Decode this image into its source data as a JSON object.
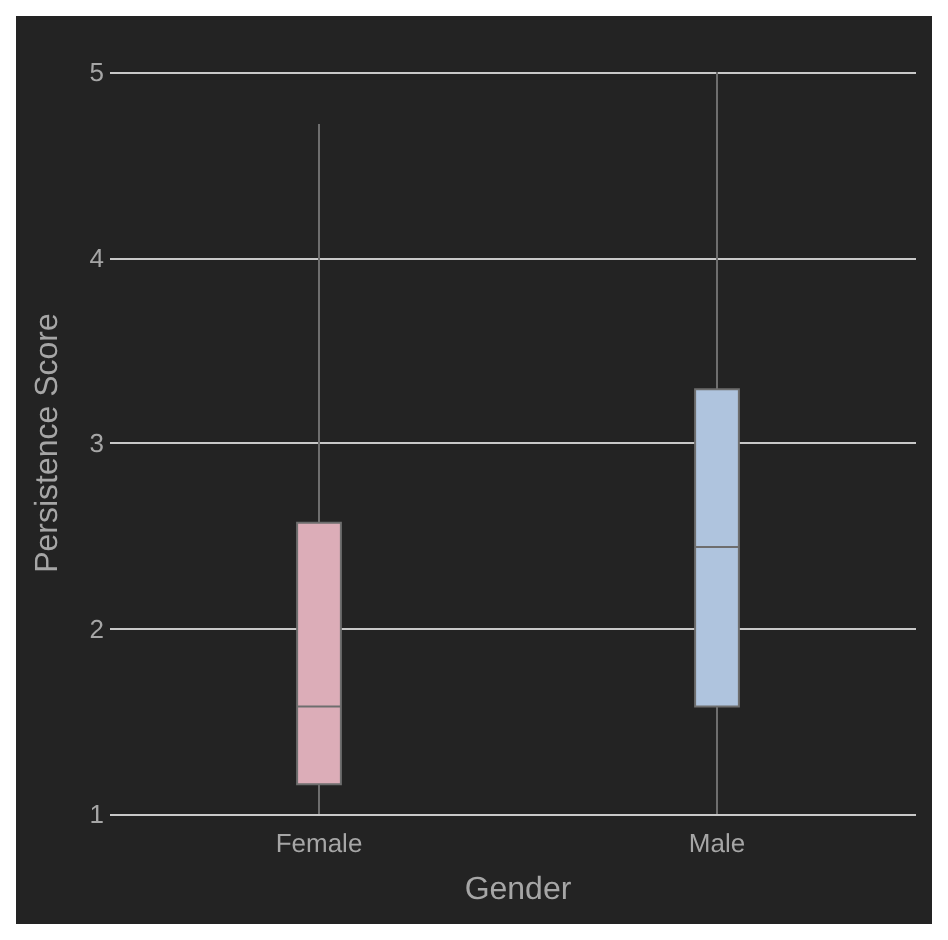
{
  "chart_data": {
    "type": "box",
    "xlabel": "Gender",
    "ylabel": "Persistence Score",
    "categories": [
      "Female",
      "Male"
    ],
    "colors": [
      "#dcadb8",
      "#afc4de"
    ],
    "boxes": [
      {
        "low": 1,
        "q1": 1.16,
        "median": 1.58,
        "q3": 2.57,
        "high": 4.72
      },
      {
        "low": 1,
        "q1": 1.58,
        "median": 2.44,
        "q3": 3.29,
        "high": 5
      }
    ],
    "ylim": [
      1,
      5
    ],
    "yticks": [
      1,
      2,
      3,
      4,
      5
    ],
    "grid": "y"
  }
}
